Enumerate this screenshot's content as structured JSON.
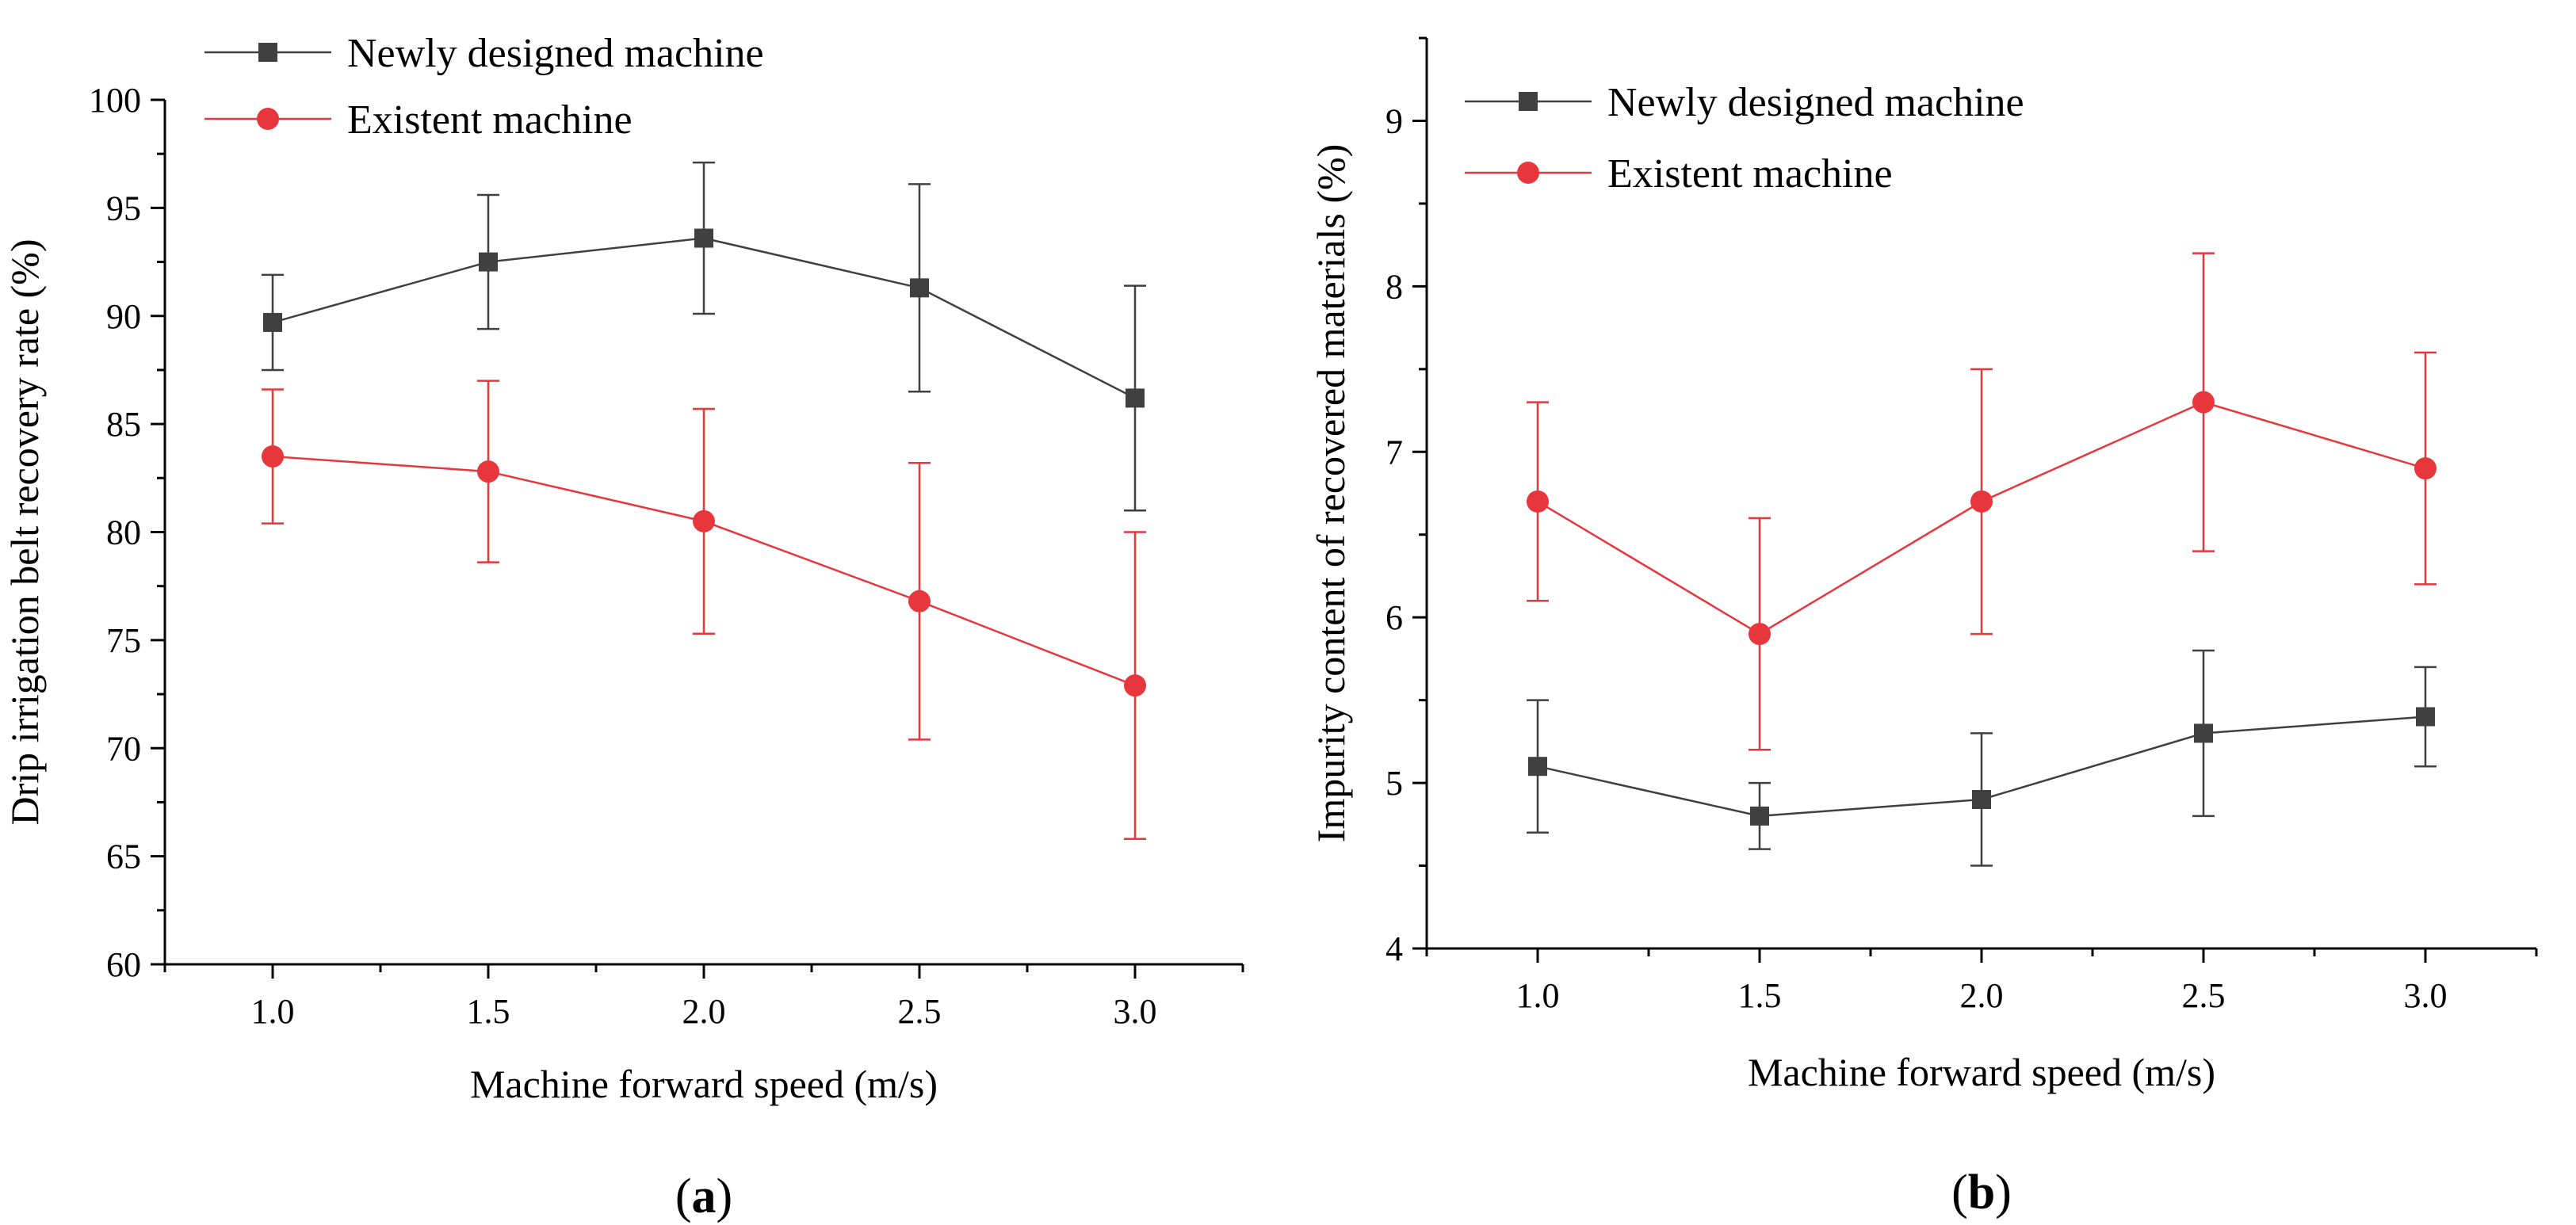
{
  "chart_data": [
    {
      "type": "line",
      "panel_label": "(a)",
      "xlabel": "Machine forward speed (m/s)",
      "ylabel": "Drip irrigation belt recovery rate (%)",
      "xlim": [
        0.75,
        3.25
      ],
      "ylim": [
        60,
        100
      ],
      "x_ticks": [
        1.0,
        1.5,
        2.0,
        2.5,
        3.0
      ],
      "x_tick_labels": [
        "1.0",
        "1.5",
        "2.0",
        "2.5",
        "3.0"
      ],
      "y_ticks": [
        60,
        65,
        70,
        75,
        80,
        85,
        90,
        95,
        100
      ],
      "y_tick_labels": [
        "60",
        "65",
        "70",
        "75",
        "80",
        "85",
        "90",
        "95",
        "100"
      ],
      "legend_position": "top-left",
      "grid": false,
      "x": [
        1.0,
        1.5,
        2.0,
        2.5,
        3.0
      ],
      "series": [
        {
          "name": "Newly designed machine",
          "color": "#404040",
          "marker": "square",
          "values": [
            89.7,
            92.5,
            93.6,
            91.3,
            86.2
          ],
          "error_low": [
            87.5,
            89.4,
            90.1,
            86.5,
            81.0
          ],
          "error_high": [
            91.9,
            95.6,
            97.1,
            96.1,
            91.4
          ]
        },
        {
          "name": "Existent machine",
          "color": "#e8363d",
          "marker": "circle",
          "values": [
            83.5,
            82.8,
            80.5,
            76.8,
            72.9
          ],
          "error_low": [
            80.4,
            78.6,
            75.3,
            70.4,
            65.8
          ],
          "error_high": [
            86.6,
            87.0,
            85.7,
            83.2,
            80.0
          ]
        }
      ]
    },
    {
      "type": "line",
      "panel_label": "(b)",
      "xlabel": "Machine forward speed (m/s)",
      "ylabel": "Impurity content of recovered materials (%)",
      "xlim": [
        0.75,
        3.25
      ],
      "ylim": [
        4,
        9.5
      ],
      "x_ticks": [
        1.0,
        1.5,
        2.0,
        2.5,
        3.0
      ],
      "x_tick_labels": [
        "1.0",
        "1.5",
        "2.0",
        "2.5",
        "3.0"
      ],
      "y_ticks": [
        4,
        5,
        6,
        7,
        8,
        9
      ],
      "y_tick_labels": [
        "4",
        "5",
        "6",
        "7",
        "8",
        "9"
      ],
      "legend_position": "top-left",
      "grid": false,
      "x": [
        1.0,
        1.5,
        2.0,
        2.5,
        3.0
      ],
      "series": [
        {
          "name": "Newly designed machine",
          "color": "#404040",
          "marker": "square",
          "values": [
            5.1,
            4.8,
            4.9,
            5.3,
            5.4
          ],
          "error_low": [
            4.7,
            4.6,
            4.5,
            4.8,
            5.1
          ],
          "error_high": [
            5.5,
            5.0,
            5.3,
            5.8,
            5.7
          ]
        },
        {
          "name": "Existent machine",
          "color": "#e8363d",
          "marker": "circle",
          "values": [
            6.7,
            5.9,
            6.7,
            7.3,
            6.9
          ],
          "error_low": [
            6.1,
            5.2,
            5.9,
            6.4,
            6.2
          ],
          "error_high": [
            7.3,
            6.6,
            7.5,
            8.2,
            7.6
          ]
        }
      ]
    }
  ]
}
